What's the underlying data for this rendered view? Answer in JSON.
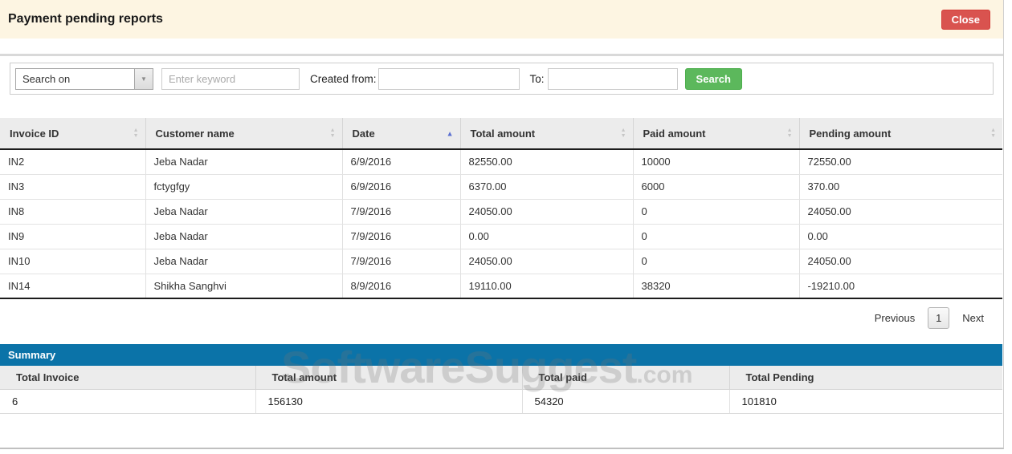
{
  "header": {
    "title": "Payment pending reports",
    "close_label": "Close"
  },
  "search_panel": {
    "search_on_value": "Search on",
    "keyword_placeholder": "Enter keyword",
    "keyword_value": "",
    "created_from_label": "Created from:",
    "created_from_value": "",
    "to_label": "To:",
    "to_value": "",
    "search_button_label": "Search"
  },
  "table": {
    "columns": [
      {
        "label": "Invoice ID",
        "sort": "both"
      },
      {
        "label": "Customer name",
        "sort": "both"
      },
      {
        "label": "Date",
        "sort": "asc"
      },
      {
        "label": "Total amount",
        "sort": "both"
      },
      {
        "label": "Paid amount",
        "sort": "both"
      },
      {
        "label": "Pending amount",
        "sort": "both"
      }
    ],
    "rows": [
      [
        "IN2",
        "Jeba Nadar",
        "6/9/2016",
        "82550.00",
        "10000",
        "72550.00"
      ],
      [
        "IN3",
        "fctygfgy",
        "6/9/2016",
        "6370.00",
        "6000",
        "370.00"
      ],
      [
        "IN8",
        "Jeba Nadar",
        "7/9/2016",
        "24050.00",
        "0",
        "24050.00"
      ],
      [
        "IN9",
        "Jeba Nadar",
        "7/9/2016",
        "0.00",
        "0",
        "0.00"
      ],
      [
        "IN10",
        "Jeba Nadar",
        "7/9/2016",
        "24050.00",
        "0",
        "24050.00"
      ],
      [
        "IN14",
        "Shikha Sanghvi",
        "8/9/2016",
        "19110.00",
        "38320",
        "-19210.00"
      ]
    ]
  },
  "pagination": {
    "previous_label": "Previous",
    "current_page": "1",
    "next_label": "Next"
  },
  "summary": {
    "title": "Summary",
    "columns": [
      "Total Invoice",
      "Total amount",
      "Total paid",
      "Total Pending"
    ],
    "values": [
      "6",
      "156130",
      "54320",
      "101810"
    ]
  },
  "watermark": {
    "text": "SoftwareSuggest",
    "suffix": ".com"
  },
  "colors": {
    "topbar_bg": "#fdf5e2",
    "close_button": "#d9534f",
    "search_button": "#5cb85c",
    "summary_header": "#0b73a8",
    "sort_active": "#5a6fd1",
    "table_header_bg": "#ececec"
  }
}
